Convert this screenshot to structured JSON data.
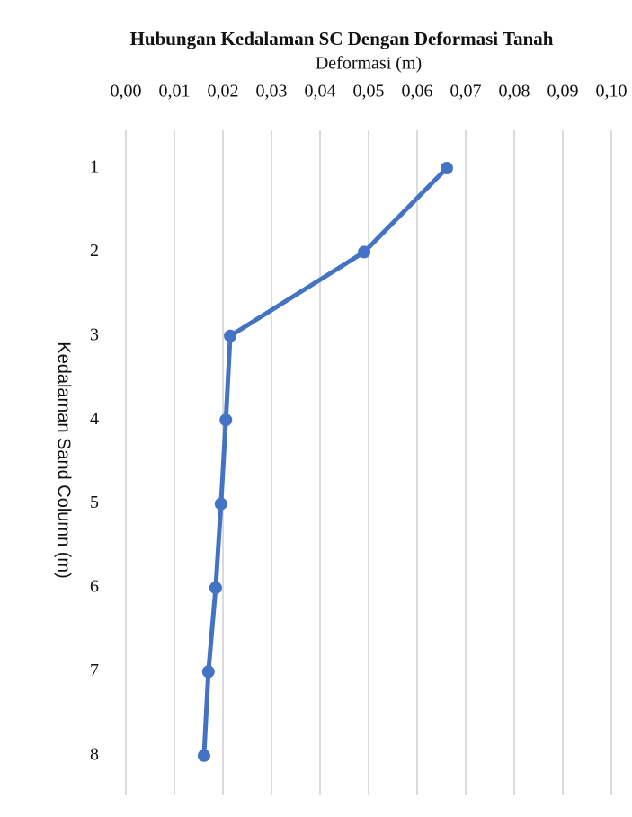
{
  "chart_data": {
    "type": "line",
    "title": "Hubungan Kedalaman SC Dengan Deformasi Tanah",
    "x_label": "Deformasi (m)",
    "y_label": "Kedalaman Sand Column (m)",
    "categories": [
      "1",
      "2",
      "3",
      "4",
      "5",
      "6",
      "7",
      "8"
    ],
    "values": [
      0.0661,
      0.0491,
      0.0215,
      0.0206,
      0.0196,
      0.0185,
      0.017,
      0.0161
    ],
    "color": "#4472c4",
    "xlim": [
      0,
      0.1
    ],
    "xticks": [
      {
        "value": 0,
        "label": "0,00"
      },
      {
        "value": 0.01,
        "label": "0,01"
      },
      {
        "value": 0.02,
        "label": "0,02"
      },
      {
        "value": 0.03,
        "label": "0,03"
      },
      {
        "value": 0.04,
        "label": "0,04"
      },
      {
        "value": 0.05,
        "label": "0,05"
      },
      {
        "value": 0.06,
        "label": "0,06"
      },
      {
        "value": 0.07,
        "label": "0,07"
      },
      {
        "value": 0.08,
        "label": "0,08"
      },
      {
        "value": 0.09,
        "label": "0,09"
      },
      {
        "value": 0.1,
        "label": "0,10"
      }
    ],
    "grid": true
  }
}
